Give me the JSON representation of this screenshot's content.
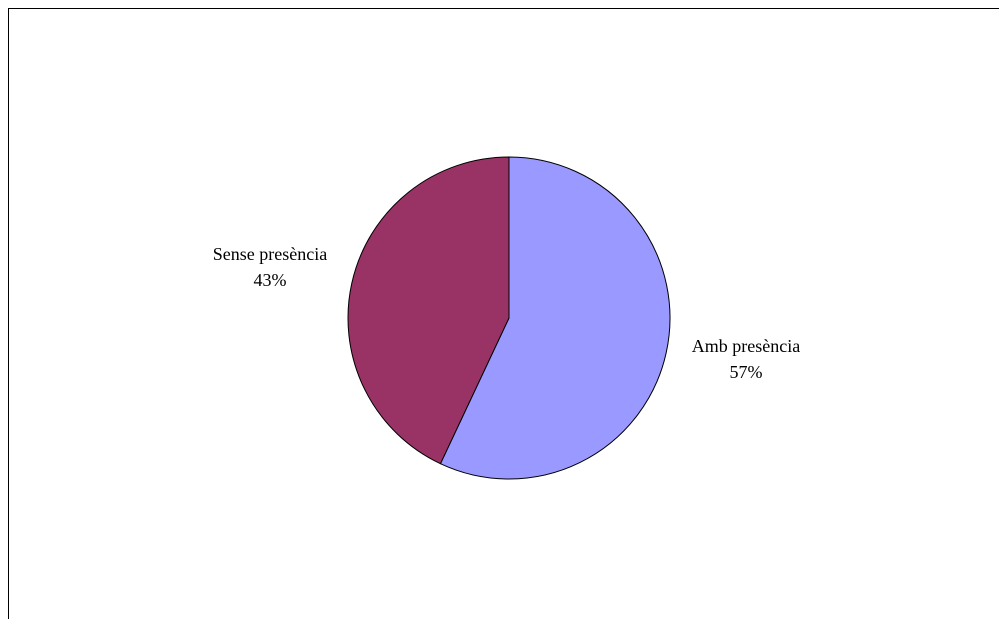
{
  "chart_data": {
    "type": "pie",
    "title": "",
    "categories": [
      "Amb presència",
      "Sense presència"
    ],
    "values": [
      57,
      43
    ],
    "value_labels": [
      "57%",
      "43%"
    ],
    "colors": [
      "#9999FF",
      "#993366"
    ],
    "legend": "none",
    "start_angle_deg": 0,
    "direction": "clockwise"
  }
}
